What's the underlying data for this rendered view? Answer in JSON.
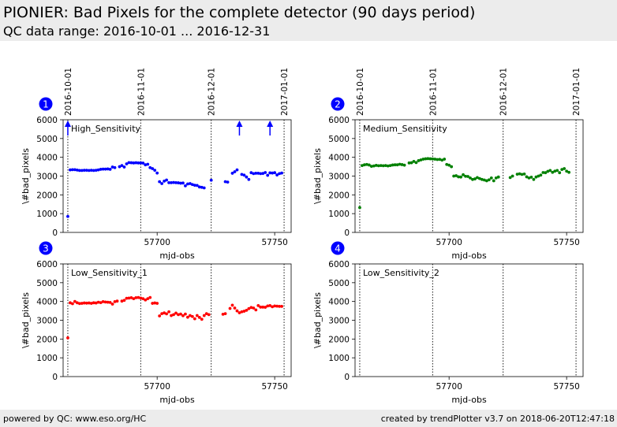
{
  "header": {
    "title": "PIONIER: Bad Pixels for the complete detector (90 days period)",
    "subtitle": "QC data range: 2016-10-01 ... 2016-12-31"
  },
  "footer": {
    "left": "powered by QC: www.eso.org/HC",
    "right": "created by trendPlotter v3.7 on 2018-06-20T12:47:18"
  },
  "colors": {
    "panel1": "#0000ff",
    "panel2": "#008000",
    "panel3": "#ff0000",
    "panel4": "#000000",
    "badge": "#0000ff"
  },
  "chart_data": [
    {
      "type": "scatter",
      "panel_number": "1",
      "label": "High_Sensitivity",
      "xlabel": "mjd-obs",
      "ylabel": "\\#bad_pixels",
      "xlim": [
        57660,
        57757
      ],
      "ylim": [
        0,
        6000
      ],
      "xticks": [
        57700,
        57750
      ],
      "yticks": [
        0,
        1000,
        2000,
        3000,
        4000,
        5000,
        6000
      ],
      "date_markers": [
        {
          "label": "2016-10-01",
          "x": 57662
        },
        {
          "label": "2016-11-01",
          "x": 57693
        },
        {
          "label": "2016-12-01",
          "x": 57723
        },
        {
          "label": "2017-01-01",
          "x": 57754
        }
      ],
      "color": "#0000ff",
      "out_of_range": [
        57662,
        57735,
        57748
      ],
      "points": [
        [
          57662,
          850
        ],
        [
          57663,
          3330
        ],
        [
          57664,
          3340
        ],
        [
          57665,
          3340
        ],
        [
          57666,
          3320
        ],
        [
          57667,
          3300
        ],
        [
          57668,
          3300
        ],
        [
          57669,
          3310
        ],
        [
          57670,
          3310
        ],
        [
          57671,
          3300
        ],
        [
          57672,
          3310
        ],
        [
          57673,
          3300
        ],
        [
          57674,
          3310
        ],
        [
          57675,
          3330
        ],
        [
          57676,
          3360
        ],
        [
          57677,
          3370
        ],
        [
          57678,
          3370
        ],
        [
          57679,
          3380
        ],
        [
          57680,
          3360
        ],
        [
          57681,
          3480
        ],
        [
          57682,
          3450
        ],
        [
          57684,
          3500
        ],
        [
          57685,
          3560
        ],
        [
          57686,
          3480
        ],
        [
          57687,
          3650
        ],
        [
          57688,
          3720
        ],
        [
          57689,
          3710
        ],
        [
          57690,
          3700
        ],
        [
          57691,
          3710
        ],
        [
          57692,
          3700
        ],
        [
          57693,
          3700
        ],
        [
          57694,
          3690
        ],
        [
          57695,
          3600
        ],
        [
          57696,
          3630
        ],
        [
          57697,
          3450
        ],
        [
          57698,
          3400
        ],
        [
          57699,
          3310
        ],
        [
          57700,
          3160
        ],
        [
          57701,
          2700
        ],
        [
          57702,
          2600
        ],
        [
          57703,
          2730
        ],
        [
          57704,
          2790
        ],
        [
          57705,
          2650
        ],
        [
          57706,
          2650
        ],
        [
          57707,
          2660
        ],
        [
          57708,
          2650
        ],
        [
          57709,
          2640
        ],
        [
          57710,
          2620
        ],
        [
          57711,
          2630
        ],
        [
          57712,
          2480
        ],
        [
          57713,
          2580
        ],
        [
          57714,
          2600
        ],
        [
          57715,
          2550
        ],
        [
          57716,
          2510
        ],
        [
          57717,
          2500
        ],
        [
          57718,
          2420
        ],
        [
          57719,
          2400
        ],
        [
          57720,
          2370
        ],
        [
          57723,
          2780
        ],
        [
          57729,
          2700
        ],
        [
          57730,
          2680
        ],
        [
          57732,
          3150
        ],
        [
          57733,
          3230
        ],
        [
          57734,
          3330
        ],
        [
          57736,
          3090
        ],
        [
          57737,
          3050
        ],
        [
          57738,
          2950
        ],
        [
          57739,
          2820
        ],
        [
          57740,
          3180
        ],
        [
          57741,
          3130
        ],
        [
          57742,
          3150
        ],
        [
          57743,
          3150
        ],
        [
          57744,
          3130
        ],
        [
          57745,
          3140
        ],
        [
          57746,
          3190
        ],
        [
          57747,
          3040
        ],
        [
          57748,
          3170
        ],
        [
          57749,
          3160
        ],
        [
          57750,
          3180
        ],
        [
          57751,
          3060
        ],
        [
          57752,
          3130
        ],
        [
          57753,
          3160
        ]
      ]
    },
    {
      "type": "scatter",
      "panel_number": "2",
      "label": "Medium_Sensitivity",
      "xlabel": "mjd-obs",
      "ylabel": "\\#bad_pixels",
      "xlim": [
        57660,
        57757
      ],
      "ylim": [
        0,
        6000
      ],
      "xticks": [
        57700,
        57750
      ],
      "yticks": [
        0,
        1000,
        2000,
        3000,
        4000,
        5000,
        6000
      ],
      "date_markers": [
        {
          "label": "2016-10-01",
          "x": 57662
        },
        {
          "label": "2016-11-01",
          "x": 57693
        },
        {
          "label": "2016-12-01",
          "x": 57723
        },
        {
          "label": "2017-01-01",
          "x": 57754
        }
      ],
      "color": "#008000",
      "out_of_range": [],
      "points": [
        [
          57662,
          1320
        ],
        [
          57663,
          3560
        ],
        [
          57664,
          3600
        ],
        [
          57665,
          3620
        ],
        [
          57666,
          3590
        ],
        [
          57667,
          3520
        ],
        [
          57668,
          3540
        ],
        [
          57669,
          3570
        ],
        [
          57670,
          3550
        ],
        [
          57671,
          3560
        ],
        [
          57672,
          3550
        ],
        [
          57673,
          3560
        ],
        [
          57674,
          3540
        ],
        [
          57675,
          3560
        ],
        [
          57676,
          3590
        ],
        [
          57677,
          3600
        ],
        [
          57678,
          3600
        ],
        [
          57679,
          3630
        ],
        [
          57680,
          3610
        ],
        [
          57681,
          3580
        ],
        [
          57683,
          3700
        ],
        [
          57684,
          3710
        ],
        [
          57685,
          3780
        ],
        [
          57686,
          3720
        ],
        [
          57687,
          3820
        ],
        [
          57688,
          3860
        ],
        [
          57689,
          3900
        ],
        [
          57690,
          3920
        ],
        [
          57691,
          3930
        ],
        [
          57692,
          3920
        ],
        [
          57693,
          3910
        ],
        [
          57694,
          3900
        ],
        [
          57695,
          3880
        ],
        [
          57696,
          3890
        ],
        [
          57697,
          3850
        ],
        [
          57698,
          3900
        ],
        [
          57699,
          3620
        ],
        [
          57700,
          3580
        ],
        [
          57701,
          3500
        ],
        [
          57702,
          3000
        ],
        [
          57703,
          3020
        ],
        [
          57704,
          2960
        ],
        [
          57705,
          2950
        ],
        [
          57706,
          3070
        ],
        [
          57707,
          2990
        ],
        [
          57708,
          2980
        ],
        [
          57709,
          2900
        ],
        [
          57710,
          2820
        ],
        [
          57711,
          2850
        ],
        [
          57712,
          2920
        ],
        [
          57713,
          2870
        ],
        [
          57714,
          2820
        ],
        [
          57715,
          2790
        ],
        [
          57716,
          2750
        ],
        [
          57717,
          2800
        ],
        [
          57718,
          2900
        ],
        [
          57719,
          2750
        ],
        [
          57720,
          2900
        ],
        [
          57721,
          2950
        ],
        [
          57726,
          2920
        ],
        [
          57727,
          3000
        ],
        [
          57729,
          3100
        ],
        [
          57730,
          3120
        ],
        [
          57731,
          3090
        ],
        [
          57732,
          3110
        ],
        [
          57733,
          2960
        ],
        [
          57734,
          2900
        ],
        [
          57735,
          2940
        ],
        [
          57736,
          2820
        ],
        [
          57737,
          2950
        ],
        [
          57738,
          3000
        ],
        [
          57739,
          3050
        ],
        [
          57740,
          3190
        ],
        [
          57741,
          3180
        ],
        [
          57742,
          3250
        ],
        [
          57743,
          3300
        ],
        [
          57744,
          3200
        ],
        [
          57745,
          3260
        ],
        [
          57746,
          3300
        ],
        [
          57747,
          3180
        ],
        [
          57748,
          3350
        ],
        [
          57749,
          3400
        ],
        [
          57750,
          3260
        ],
        [
          57751,
          3200
        ]
      ]
    },
    {
      "type": "scatter",
      "panel_number": "3",
      "label": "Low_Sensitivity_1",
      "xlabel": "mjd-obs",
      "ylabel": "\\#bad_pixels",
      "xlim": [
        57660,
        57757
      ],
      "ylim": [
        0,
        6000
      ],
      "xticks": [
        57700,
        57750
      ],
      "yticks": [
        0,
        1000,
        2000,
        3000,
        4000,
        5000,
        6000
      ],
      "date_markers": [
        {
          "label": "2016-10-01",
          "x": 57662
        },
        {
          "label": "2016-11-01",
          "x": 57693
        },
        {
          "label": "2016-12-01",
          "x": 57723
        },
        {
          "label": "2017-01-01",
          "x": 57754
        }
      ],
      "color": "#ff0000",
      "out_of_range": [],
      "points": [
        [
          57662,
          2060
        ],
        [
          57663,
          3930
        ],
        [
          57664,
          3880
        ],
        [
          57665,
          4000
        ],
        [
          57666,
          3930
        ],
        [
          57667,
          3890
        ],
        [
          57668,
          3900
        ],
        [
          57669,
          3920
        ],
        [
          57670,
          3910
        ],
        [
          57671,
          3920
        ],
        [
          57672,
          3900
        ],
        [
          57673,
          3930
        ],
        [
          57674,
          3920
        ],
        [
          57675,
          3960
        ],
        [
          57676,
          3940
        ],
        [
          57677,
          3990
        ],
        [
          57678,
          3970
        ],
        [
          57679,
          3960
        ],
        [
          57680,
          3950
        ],
        [
          57681,
          3860
        ],
        [
          57682,
          3990
        ],
        [
          57683,
          4020
        ],
        [
          57685,
          4020
        ],
        [
          57686,
          4060
        ],
        [
          57687,
          4170
        ],
        [
          57688,
          4180
        ],
        [
          57689,
          4200
        ],
        [
          57690,
          4150
        ],
        [
          57691,
          4200
        ],
        [
          57692,
          4210
        ],
        [
          57693,
          4180
        ],
        [
          57694,
          4150
        ],
        [
          57695,
          4080
        ],
        [
          57696,
          4150
        ],
        [
          57697,
          4210
        ],
        [
          57698,
          3900
        ],
        [
          57699,
          3920
        ],
        [
          57700,
          3900
        ],
        [
          57701,
          3230
        ],
        [
          57702,
          3350
        ],
        [
          57703,
          3390
        ],
        [
          57704,
          3340
        ],
        [
          57705,
          3450
        ],
        [
          57706,
          3250
        ],
        [
          57707,
          3300
        ],
        [
          57708,
          3380
        ],
        [
          57709,
          3300
        ],
        [
          57710,
          3330
        ],
        [
          57711,
          3240
        ],
        [
          57712,
          3330
        ],
        [
          57713,
          3160
        ],
        [
          57714,
          3250
        ],
        [
          57715,
          3200
        ],
        [
          57716,
          3080
        ],
        [
          57717,
          3250
        ],
        [
          57718,
          3150
        ],
        [
          57719,
          3050
        ],
        [
          57720,
          3250
        ],
        [
          57721,
          3350
        ],
        [
          57722,
          3300
        ],
        [
          57728,
          3320
        ],
        [
          57729,
          3350
        ],
        [
          57731,
          3630
        ],
        [
          57732,
          3800
        ],
        [
          57733,
          3650
        ],
        [
          57734,
          3500
        ],
        [
          57735,
          3400
        ],
        [
          57736,
          3450
        ],
        [
          57737,
          3480
        ],
        [
          57738,
          3530
        ],
        [
          57739,
          3620
        ],
        [
          57740,
          3680
        ],
        [
          57741,
          3650
        ],
        [
          57742,
          3550
        ],
        [
          57743,
          3780
        ],
        [
          57744,
          3700
        ],
        [
          57745,
          3700
        ],
        [
          57746,
          3690
        ],
        [
          57747,
          3760
        ],
        [
          57748,
          3780
        ],
        [
          57749,
          3720
        ],
        [
          57750,
          3760
        ],
        [
          57751,
          3750
        ],
        [
          57752,
          3740
        ],
        [
          57753,
          3740
        ]
      ]
    },
    {
      "type": "scatter",
      "panel_number": "4",
      "label": "Low_Sensitivity_2",
      "xlabel": "mjd-obs",
      "ylabel": "\\#bad_pixels",
      "xlim": [
        57660,
        57757
      ],
      "ylim": [
        0,
        6000
      ],
      "xticks": [
        57700,
        57750
      ],
      "yticks": [
        0,
        1000,
        2000,
        3000,
        4000,
        5000,
        6000
      ],
      "date_markers": [
        {
          "label": "2016-10-01",
          "x": 57662
        },
        {
          "label": "2016-11-01",
          "x": 57693
        },
        {
          "label": "2016-12-01",
          "x": 57723
        },
        {
          "label": "2017-01-01",
          "x": 57754
        }
      ],
      "color": "#000000",
      "out_of_range": [],
      "points": []
    }
  ]
}
